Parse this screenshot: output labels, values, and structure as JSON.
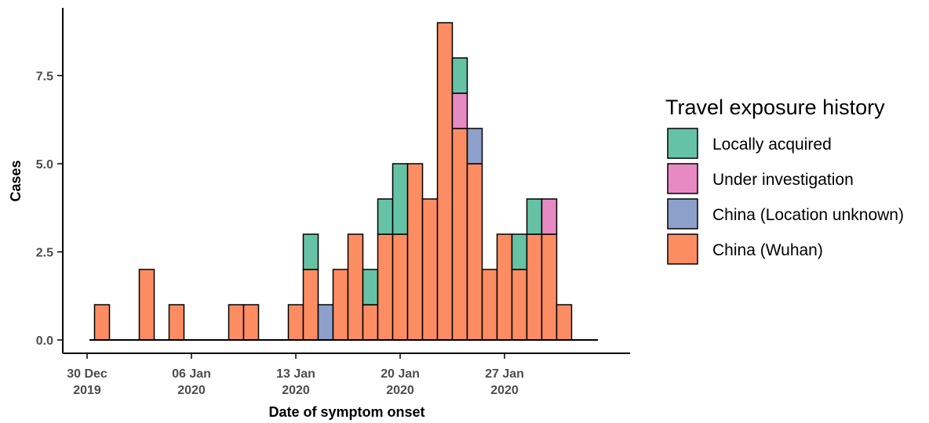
{
  "chart_data": {
    "type": "bar",
    "stacked": true,
    "title": "",
    "xlabel": "Date of symptom onset",
    "ylabel": "Cases",
    "ylim": [
      0,
      9.4
    ],
    "y_ticks": [
      "0.0",
      "2.5",
      "5.0",
      "7.5"
    ],
    "y_tick_values": [
      0,
      2.5,
      5,
      7.5
    ],
    "x_ticks": [
      {
        "line1": "30 Dec",
        "line2": "2019",
        "date": "2019-12-30"
      },
      {
        "line1": "06 Jan",
        "line2": "2020",
        "date": "2020-01-06"
      },
      {
        "line1": "13 Jan",
        "line2": "2020",
        "date": "2020-01-13"
      },
      {
        "line1": "20 Jan",
        "line2": "2020",
        "date": "2020-01-20"
      },
      {
        "line1": "27 Jan",
        "line2": "2020",
        "date": "2020-01-27"
      }
    ],
    "x_range": [
      "2019-12-30",
      "2020-02-03"
    ],
    "grid": false,
    "legend": {
      "title": "Travel exposure history",
      "position": "right",
      "entries": [
        {
          "name": "Locally acquired",
          "color": "#66c2a5"
        },
        {
          "name": "Under investigation",
          "color": "#e78ac3"
        },
        {
          "name": "China (Location unknown)",
          "color": "#8da0cb"
        },
        {
          "name": "China (Wuhan)",
          "color": "#fc8d62"
        }
      ]
    },
    "dates": [
      "2019-12-31",
      "2020-01-01",
      "2020-01-02",
      "2020-01-03",
      "2020-01-04",
      "2020-01-05",
      "2020-01-06",
      "2020-01-07",
      "2020-01-08",
      "2020-01-09",
      "2020-01-10",
      "2020-01-11",
      "2020-01-12",
      "2020-01-13",
      "2020-01-14",
      "2020-01-15",
      "2020-01-16",
      "2020-01-17",
      "2020-01-18",
      "2020-01-19",
      "2020-01-20",
      "2020-01-21",
      "2020-01-22",
      "2020-01-23",
      "2020-01-24",
      "2020-01-25",
      "2020-01-26",
      "2020-01-27",
      "2020-01-28",
      "2020-01-29",
      "2020-01-30",
      "2020-01-31"
    ],
    "series": [
      {
        "name": "China (Wuhan)",
        "color": "#fc8d62",
        "values": [
          1,
          0,
          0,
          2,
          0,
          1,
          0,
          0,
          0,
          1,
          1,
          0,
          0,
          1,
          2,
          0,
          2,
          3,
          1,
          3,
          3,
          5,
          4,
          9,
          6,
          5,
          2,
          3,
          2,
          3,
          3,
          1
        ]
      },
      {
        "name": "China (Location unknown)",
        "color": "#8da0cb",
        "values": [
          0,
          0,
          0,
          0,
          0,
          0,
          0,
          0,
          0,
          0,
          0,
          0,
          0,
          0,
          0,
          1,
          0,
          0,
          0,
          0,
          0,
          0,
          0,
          0,
          0,
          1,
          0,
          0,
          0,
          0,
          0,
          0
        ]
      },
      {
        "name": "Under investigation",
        "color": "#e78ac3",
        "values": [
          0,
          0,
          0,
          0,
          0,
          0,
          0,
          0,
          0,
          0,
          0,
          0,
          0,
          0,
          0,
          0,
          0,
          0,
          0,
          0,
          0,
          0,
          0,
          0,
          1,
          0,
          0,
          0,
          0,
          0,
          1,
          0
        ]
      },
      {
        "name": "Locally acquired",
        "color": "#66c2a5",
        "values": [
          0,
          0,
          0,
          0,
          0,
          0,
          0,
          0,
          0,
          0,
          0,
          0,
          0,
          0,
          1,
          0,
          0,
          0,
          1,
          1,
          2,
          0,
          0,
          0,
          1,
          0,
          0,
          0,
          1,
          1,
          0,
          0
        ]
      }
    ]
  }
}
